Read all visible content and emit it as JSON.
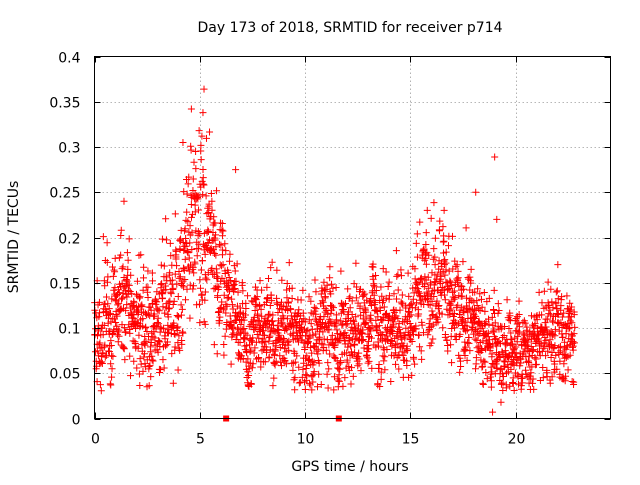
{
  "chart_data": {
    "type": "scatter",
    "title": "Day 173 of 2018, SRMTID for receiver p714",
    "xlabel": "GPS time / hours",
    "ylabel": "SRMTID / TECUs",
    "xlim": [
      0,
      24.5
    ],
    "ylim": [
      0,
      0.4
    ],
    "xticks": [
      0,
      5,
      10,
      15,
      20
    ],
    "xtick_labels": [
      "0",
      "5",
      "10",
      "15",
      "20"
    ],
    "yticks": [
      0,
      0.05,
      0.1,
      0.15,
      0.2,
      0.25,
      0.3,
      0.35,
      0.4
    ],
    "ytick_labels": [
      "0",
      "0.05",
      "0.1",
      "0.15",
      "0.2",
      "0.25",
      "0.3",
      "0.35",
      "0.4"
    ],
    "grid": true,
    "marker": "+",
    "color": "#ff0000",
    "series": [
      {
        "name": "SRMTID",
        "profile_x": [
          0,
          1,
          2,
          3,
          3.8,
          4.5,
          5,
          5.5,
          6,
          6.5,
          7,
          8,
          9,
          10,
          11,
          12,
          13,
          14,
          15,
          15.5,
          16,
          16.5,
          17,
          18,
          19,
          20,
          20.5,
          21,
          22,
          22.8
        ],
        "profile_mean": [
          0.1,
          0.12,
          0.11,
          0.11,
          0.13,
          0.18,
          0.22,
          0.2,
          0.16,
          0.12,
          0.1,
          0.1,
          0.1,
          0.09,
          0.1,
          0.09,
          0.1,
          0.09,
          0.12,
          0.16,
          0.15,
          0.15,
          0.13,
          0.1,
          0.08,
          0.07,
          0.07,
          0.09,
          0.1,
          0.08
        ],
        "profile_spread": [
          0.035,
          0.035,
          0.035,
          0.035,
          0.04,
          0.06,
          0.06,
          0.05,
          0.04,
          0.035,
          0.03,
          0.03,
          0.03,
          0.03,
          0.03,
          0.03,
          0.03,
          0.03,
          0.035,
          0.04,
          0.04,
          0.04,
          0.035,
          0.03,
          0.03,
          0.025,
          0.025,
          0.03,
          0.03,
          0.03
        ],
        "point_count": 2400,
        "x_range": [
          0,
          22.8
        ],
        "outliers": [
          {
            "x": 5.2,
            "y": 0.364
          },
          {
            "x": 4.6,
            "y": 0.342
          },
          {
            "x": 5.15,
            "y": 0.338
          },
          {
            "x": 4.8,
            "y": 0.295
          },
          {
            "x": 4.2,
            "y": 0.305
          },
          {
            "x": 5.1,
            "y": 0.312
          },
          {
            "x": 19.0,
            "y": 0.289
          },
          {
            "x": 18.1,
            "y": 0.25
          },
          {
            "x": 19.1,
            "y": 0.22
          },
          {
            "x": 1.4,
            "y": 0.24
          },
          {
            "x": 15.8,
            "y": 0.23
          },
          {
            "x": 16.6,
            "y": 0.23
          },
          {
            "x": 6.7,
            "y": 0.275
          },
          {
            "x": 18.9,
            "y": 0.007
          },
          {
            "x": 19.3,
            "y": 0.018
          }
        ]
      }
    ],
    "gap_markers_x": [
      6.25,
      11.6
    ]
  }
}
